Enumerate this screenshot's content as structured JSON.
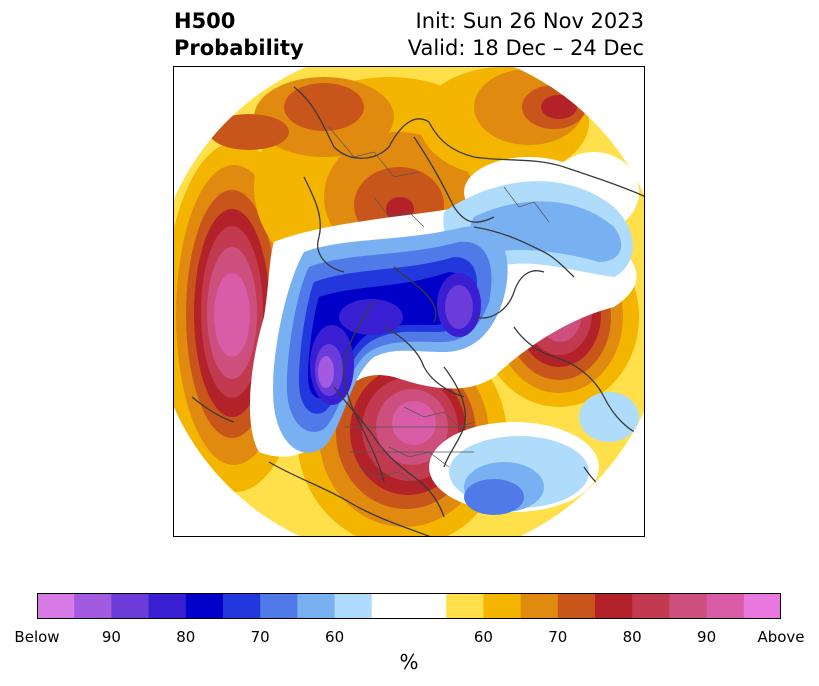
{
  "header": {
    "title_line1": "H500",
    "title_line2": "Probability",
    "init_text": "Init: Sun 26 Nov 2023",
    "valid_text": "Valid: 18 Dec – 24 Dec"
  },
  "map": {
    "projection": "north-polar-stereographic",
    "field": "500 hPa height probability",
    "anomalies": [
      {
        "name": "north-pacific-above",
        "category": "above",
        "peak_percent": 90
      },
      {
        "name": "eastern-north-america-above",
        "category": "above",
        "peak_percent": 90
      },
      {
        "name": "scandinavia-above",
        "category": "above",
        "peak_percent": 80
      },
      {
        "name": "eastern-siberia-above",
        "category": "above",
        "peak_percent": 80
      },
      {
        "name": "western-europe-above",
        "category": "above",
        "peak_percent": 90
      },
      {
        "name": "alaska-canada-below",
        "category": "below",
        "peak_percent": 90
      },
      {
        "name": "arctic-greenland-below",
        "category": "below",
        "peak_percent": 80
      },
      {
        "name": "central-atlantic-below",
        "category": "below",
        "peak_percent": 70
      }
    ]
  },
  "colorbar": {
    "below_colors": [
      "#d67ae6",
      "#a15ae0",
      "#6b3cd9",
      "#3a1fd2",
      "#0000c8",
      "#2238dc",
      "#4f7ae8",
      "#78b0f2",
      "#aedcfa"
    ],
    "neutral_color": "#ffffff",
    "above_colors": [
      "#ffe04a",
      "#f3b500",
      "#e08a10",
      "#c8561a",
      "#b22228",
      "#c23a50",
      "#cc4f7e",
      "#d95ca6",
      "#e878de"
    ],
    "tick_labels": [
      "Below",
      "90",
      "80",
      "70",
      "60",
      "60",
      "70",
      "80",
      "90",
      "Above"
    ],
    "unit": "%"
  }
}
